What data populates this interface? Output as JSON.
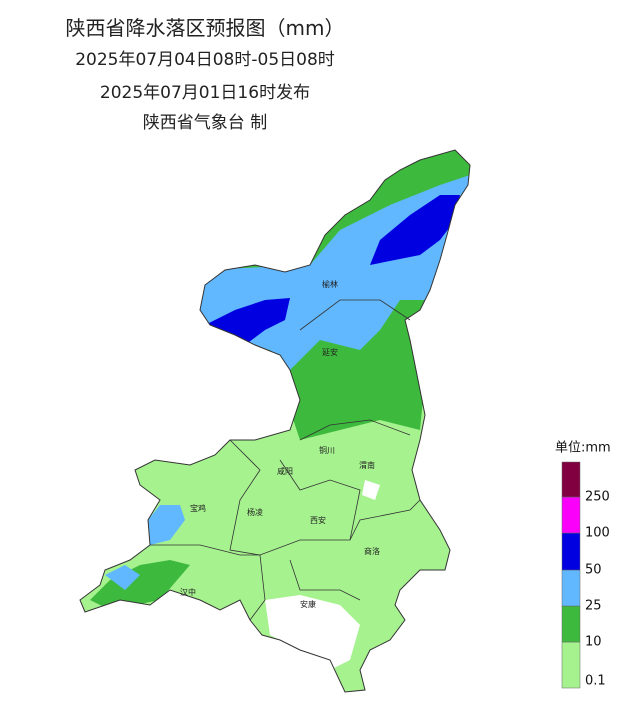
{
  "title": {
    "lines": [
      "陕西省降水落区预报图（mm）",
      "2025年07月04日08时-05日08时",
      "2025年07月01日16时发布",
      "陕西省气象台 制"
    ]
  },
  "cities": [
    {
      "name": "榆林"
    },
    {
      "name": "延安"
    },
    {
      "name": "铜川"
    },
    {
      "name": "渭南"
    },
    {
      "name": "咸阳"
    },
    {
      "name": "宝鸡"
    },
    {
      "name": "杨凌"
    },
    {
      "name": "西安"
    },
    {
      "name": "商洛"
    },
    {
      "name": "汉中"
    },
    {
      "name": "安康"
    }
  ],
  "legend": {
    "unit": "单位:mm",
    "levels": [
      {
        "label": 0.1,
        "color": "#a6f28f"
      },
      {
        "label": 10,
        "color": "#3dba3d"
      },
      {
        "label": 25,
        "color": "#61b8ff"
      },
      {
        "label": 50,
        "color": "#0000e1"
      },
      {
        "label": 100,
        "color": "#fa00fa"
      },
      {
        "label": 250,
        "color": "#800040"
      }
    ]
  }
}
